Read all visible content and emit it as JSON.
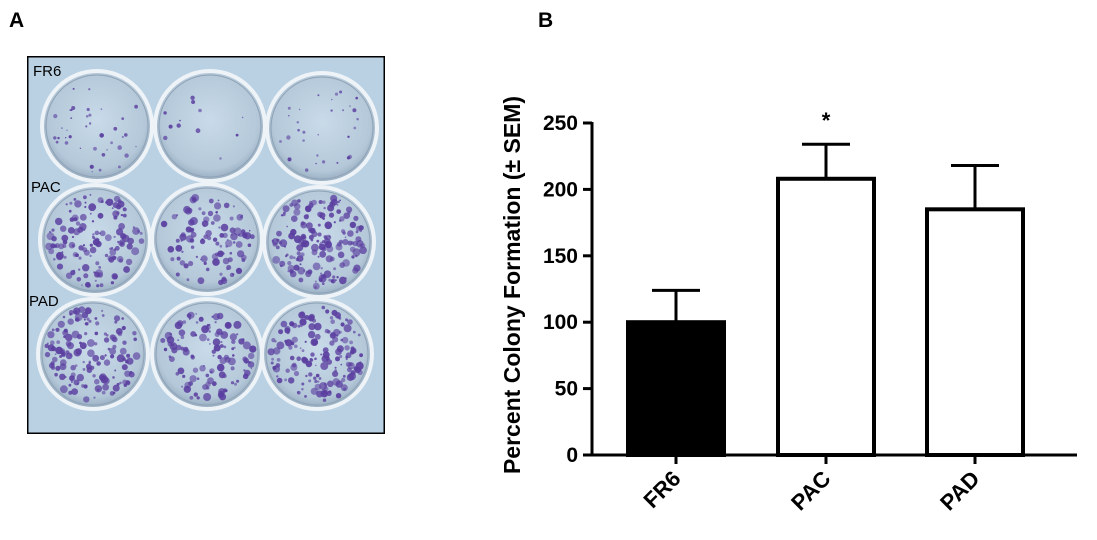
{
  "panels": {
    "a": {
      "letter": "A",
      "row_labels": [
        "FR6",
        "PAC",
        "PAD"
      ]
    },
    "b": {
      "letter": "B"
    }
  },
  "colors": {
    "photo_background": "#b9d1e3",
    "colony_stain": "#5b3fa0",
    "bar_fill_fr6": "#000000",
    "bar_fill_other": "#ffffff",
    "bar_stroke": "#000000"
  },
  "chart_data": {
    "type": "bar",
    "categories": [
      "FR6",
      "PAC",
      "PAD"
    ],
    "values": [
      100,
      208,
      185
    ],
    "error_upper": [
      124,
      234,
      218
    ],
    "annotations": [
      {
        "category": "PAC",
        "text": "*"
      }
    ],
    "title": "",
    "xlabel": "",
    "ylabel": "Percent Colony Formation (± SEM)",
    "ylim": [
      0,
      250
    ],
    "yticks": [
      0,
      50,
      100,
      150,
      200,
      250
    ],
    "grid": false,
    "legend": "none"
  }
}
